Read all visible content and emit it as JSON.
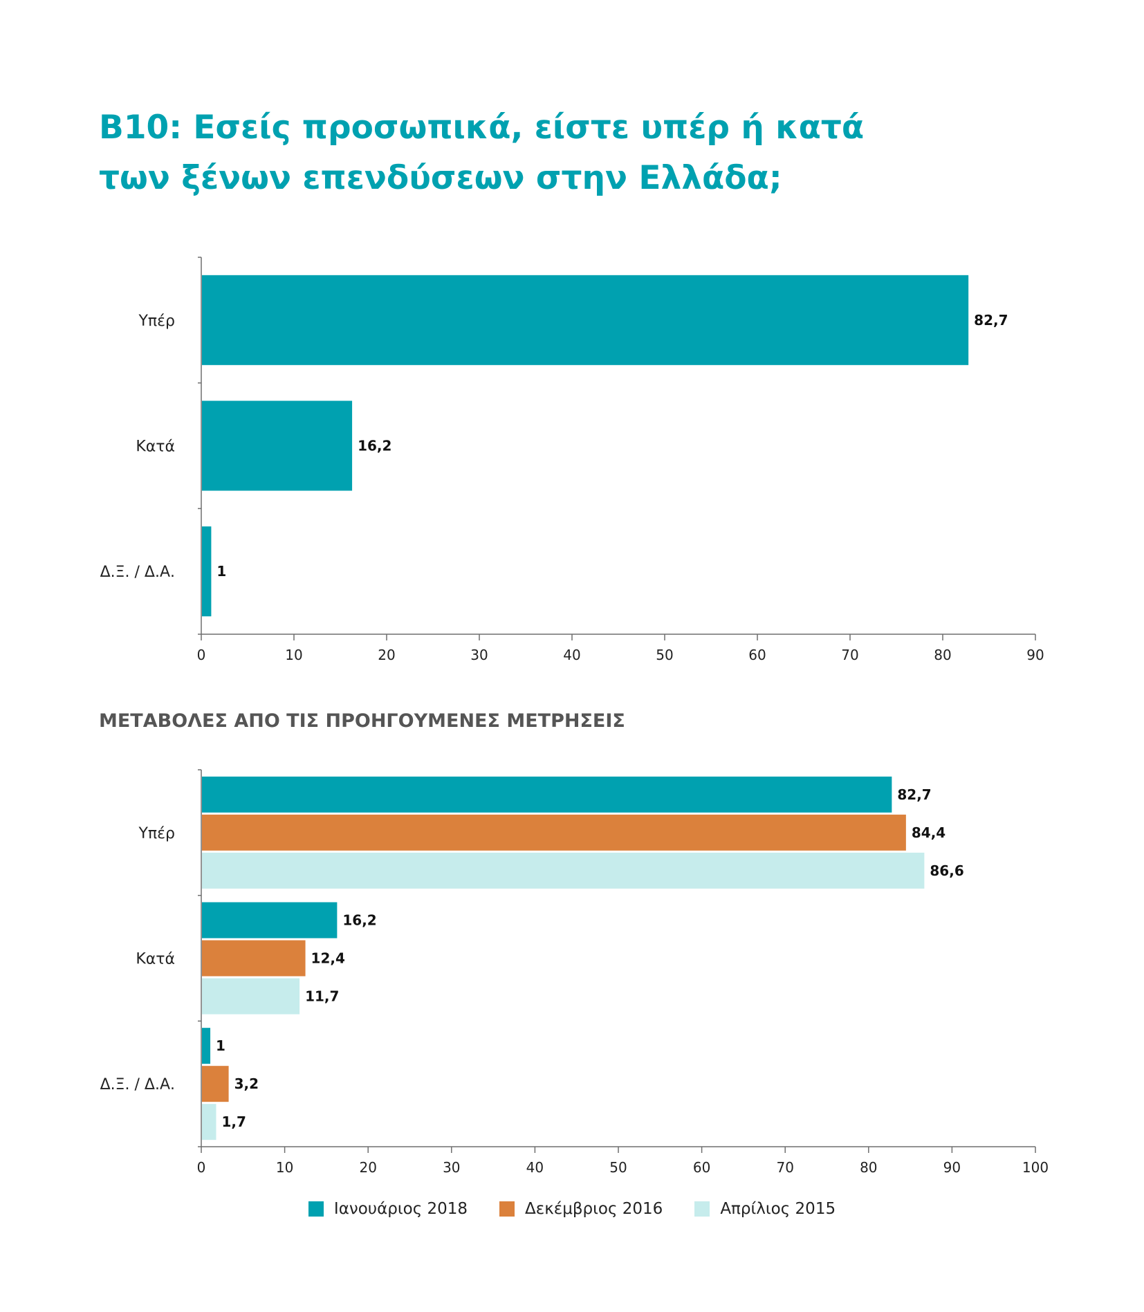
{
  "title_line1": "B10: Εσείς προσωπικά, είστε υπέρ ή κατά",
  "title_line2": "των ξένων επενδύσεων στην Ελλάδα;",
  "subtitle": "ΜΕΤΑΒΟΛΕΣ ΑΠΟ ΤΙΣ ΠΡΟΗΓΟΥΜΕΝΕΣ ΜΕΤΡΗΣΕΙΣ",
  "colors": {
    "title": "#00a1b0",
    "series_2018": "#00a1b0",
    "series_2016": "#db813c",
    "series_2015": "#c6ecec",
    "axis": "#6e6e6e",
    "subtitle": "#555555"
  },
  "chart_data": [
    {
      "type": "bar",
      "orientation": "horizontal",
      "categories": [
        "Υπέρ",
        "Κατά",
        "Δ.Ξ. / Δ.Α."
      ],
      "series": [
        {
          "values": [
            82.7,
            16.2,
            1
          ],
          "labels": [
            "82,7",
            "16,2",
            "1"
          ],
          "color": "#00a1b0"
        }
      ],
      "xlim": [
        0,
        90
      ],
      "xticks": [
        0,
        10,
        20,
        30,
        40,
        50,
        60,
        70,
        80,
        90
      ],
      "grid": false,
      "legend": "none"
    },
    {
      "type": "bar",
      "orientation": "horizontal",
      "title": "ΜΕΤΑΒΟΛΕΣ ΑΠΟ ΤΙΣ ΠΡΟΗΓΟΥΜΕΝΕΣ ΜΕΤΡΗΣΕΙΣ",
      "categories": [
        "Υπέρ",
        "Κατά",
        "Δ.Ξ. / Δ.Α."
      ],
      "series": [
        {
          "name": "Ιανουάριος 2018",
          "values": [
            82.7,
            16.2,
            1
          ],
          "labels": [
            "82,7",
            "16,2",
            "1"
          ],
          "color": "#00a1b0"
        },
        {
          "name": "Δεκέμβριος 2016",
          "values": [
            84.4,
            12.4,
            3.2
          ],
          "labels": [
            "84,4",
            "12,4",
            "3,2"
          ],
          "color": "#db813c"
        },
        {
          "name": "Απρίλιος 2015",
          "values": [
            86.6,
            11.7,
            1.7
          ],
          "labels": [
            "86,6",
            "11,7",
            "1,7"
          ],
          "color": "#c6ecec"
        }
      ],
      "xlim": [
        0,
        100
      ],
      "xticks": [
        0,
        10,
        20,
        30,
        40,
        50,
        60,
        70,
        80,
        90,
        100
      ],
      "grid": false,
      "legend": "bottom"
    }
  ]
}
